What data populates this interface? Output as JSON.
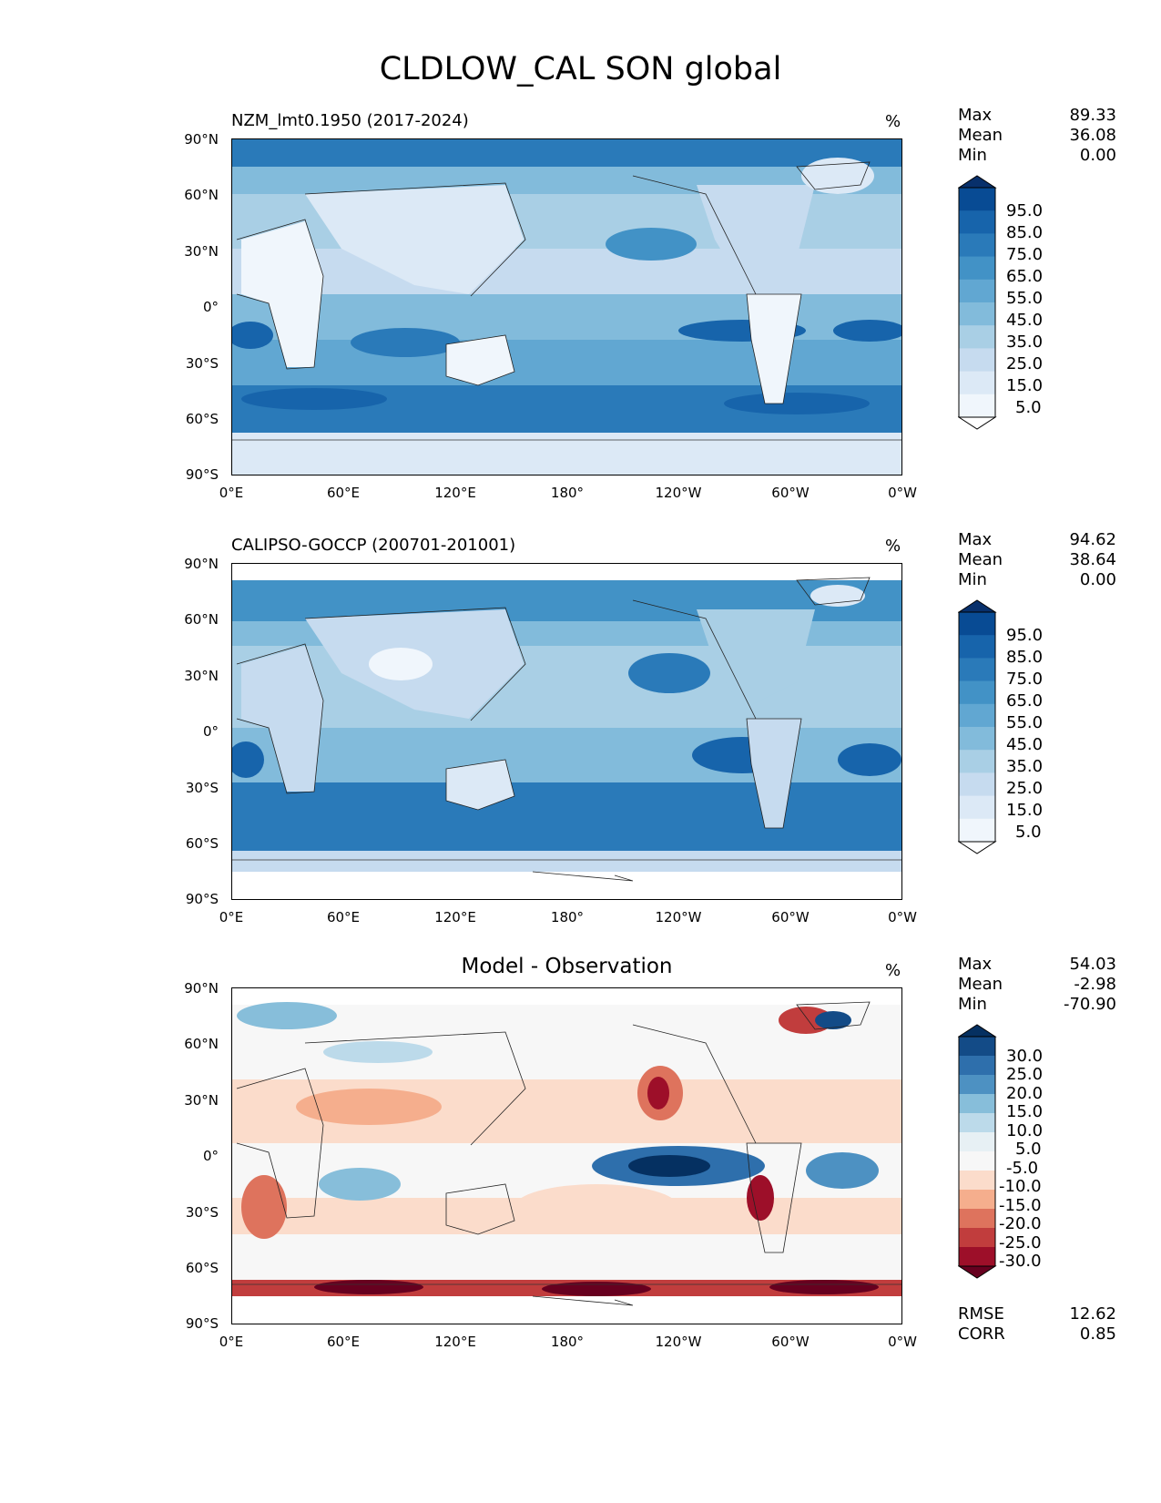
{
  "title": "CLDLOW_CAL SON global",
  "unit": "%",
  "y_ticks": [
    "90°N",
    "60°N",
    "30°N",
    "0°",
    "30°S",
    "60°S",
    "90°S"
  ],
  "x_ticks": [
    "0°E",
    "60°E",
    "120°E",
    "180°",
    "120°W",
    "60°W",
    "0°W"
  ],
  "panels": [
    {
      "title": "NZM_lmt0.1950 (2017-2024)",
      "stats": [
        {
          "label": "Max",
          "value": "89.33"
        },
        {
          "label": "Mean",
          "value": "36.08"
        },
        {
          "label": "Min",
          "value": "0.00"
        }
      ],
      "colorbar": {
        "labels": [
          "95.0",
          "85.0",
          "75.0",
          "65.0",
          "55.0",
          "45.0",
          "35.0",
          "25.0",
          "15.0",
          "5.0"
        ],
        "colors": [
          "#08306b",
          "#084b94",
          "#1764ab",
          "#2a7ab9",
          "#4292c6",
          "#61a7d2",
          "#82bbdb",
          "#a9cfe5",
          "#c6dbef",
          "#dce9f6",
          "#f0f6fc",
          "#ffffff"
        ]
      }
    },
    {
      "title": "CALIPSO-GOCCP (200701-201001)",
      "stats": [
        {
          "label": "Max",
          "value": "94.62"
        },
        {
          "label": "Mean",
          "value": "38.64"
        },
        {
          "label": "Min",
          "value": "0.00"
        }
      ],
      "colorbar": {
        "labels": [
          "95.0",
          "85.0",
          "75.0",
          "65.0",
          "55.0",
          "45.0",
          "35.0",
          "25.0",
          "15.0",
          "5.0"
        ],
        "colors": [
          "#08306b",
          "#084b94",
          "#1764ab",
          "#2a7ab9",
          "#4292c6",
          "#61a7d2",
          "#82bbdb",
          "#a9cfe5",
          "#c6dbef",
          "#dce9f6",
          "#f0f6fc",
          "#ffffff"
        ]
      }
    },
    {
      "title": "Model - Observation",
      "stats": [
        {
          "label": "Max",
          "value": "54.03"
        },
        {
          "label": "Mean",
          "value": "-2.98"
        },
        {
          "label": "Min",
          "value": "-70.90"
        }
      ],
      "colorbar": {
        "labels": [
          "30.0",
          "25.0",
          "20.0",
          "15.0",
          "10.0",
          "5.0",
          "-5.0",
          "-10.0",
          "-15.0",
          "-20.0",
          "-25.0",
          "-30.0"
        ],
        "colors": [
          "#053061",
          "#134b87",
          "#2e6fac",
          "#4d91c2",
          "#87beda",
          "#bcdaea",
          "#e7f0f4",
          "#f7f7f7",
          "#fbdccb",
          "#f5ae8d",
          "#de735d",
          "#c13d3d",
          "#9d0f29",
          "#67001f"
        ]
      },
      "metrics": [
        {
          "label": "RMSE",
          "value": "12.62"
        },
        {
          "label": "CORR",
          "value": "0.85"
        }
      ]
    }
  ]
}
